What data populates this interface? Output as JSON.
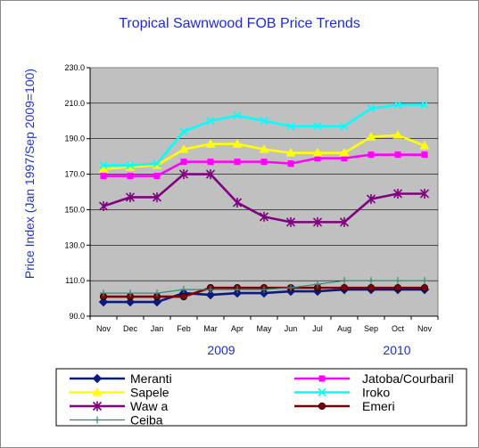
{
  "chart_data": {
    "type": "line",
    "title": "Tropical Sawnwood FOB Price Trends",
    "ylabel": "Price Index (Jan 1997/Sep 2009=100)",
    "ylim": [
      90,
      230
    ],
    "yticks": [
      "90.0",
      "110.0",
      "130.0",
      "150.0",
      "170.0",
      "190.0",
      "210.0",
      "230.0"
    ],
    "categories": [
      "Nov",
      "Dec",
      "Jan",
      "Feb",
      "Mar",
      "Apr",
      "May",
      "Jun",
      "Jul",
      "Aug",
      "Sep",
      "Oct",
      "Nov"
    ],
    "year_labels": [
      "2009",
      "2010"
    ],
    "grid": true,
    "legend_position": "bottom",
    "series": [
      {
        "name": "Meranti",
        "color": "#0a1a80",
        "marker": "diamond",
        "values": [
          98,
          98,
          98,
          103,
          102,
          103,
          103,
          104,
          104,
          105,
          105,
          105,
          105
        ]
      },
      {
        "name": "Jatoba/Courbaril",
        "color": "#ff00ff",
        "marker": "square",
        "values": [
          169,
          169,
          169,
          177,
          177,
          177,
          177,
          176,
          179,
          179,
          181,
          181,
          181
        ]
      },
      {
        "name": "Sapele",
        "color": "#ffff00",
        "marker": "triangle",
        "values": [
          173,
          174,
          175,
          184,
          187,
          187,
          184,
          182,
          182,
          182,
          191,
          192,
          186
        ]
      },
      {
        "name": "Iroko",
        "color": "#00ffff",
        "marker": "x",
        "values": [
          175,
          175,
          176,
          194,
          200,
          203,
          200,
          197,
          197,
          197,
          207,
          209,
          209
        ]
      },
      {
        "name": "Waw a",
        "color": "#800080",
        "marker": "star",
        "values": [
          152,
          157,
          157,
          170,
          170,
          154,
          146,
          143,
          143,
          143,
          156,
          159,
          159
        ]
      },
      {
        "name": "Emeri",
        "color": "#800000",
        "marker": "circle",
        "values": [
          101,
          101,
          101,
          101,
          106,
          106,
          106,
          106,
          106,
          106,
          106,
          106,
          106
        ]
      },
      {
        "name": "Ceiba",
        "color": "#2e8b7a",
        "marker": "plus",
        "values": [
          103,
          103,
          103,
          105,
          105,
          105,
          105,
          106,
          108,
          110,
          110,
          110,
          110
        ]
      }
    ]
  }
}
